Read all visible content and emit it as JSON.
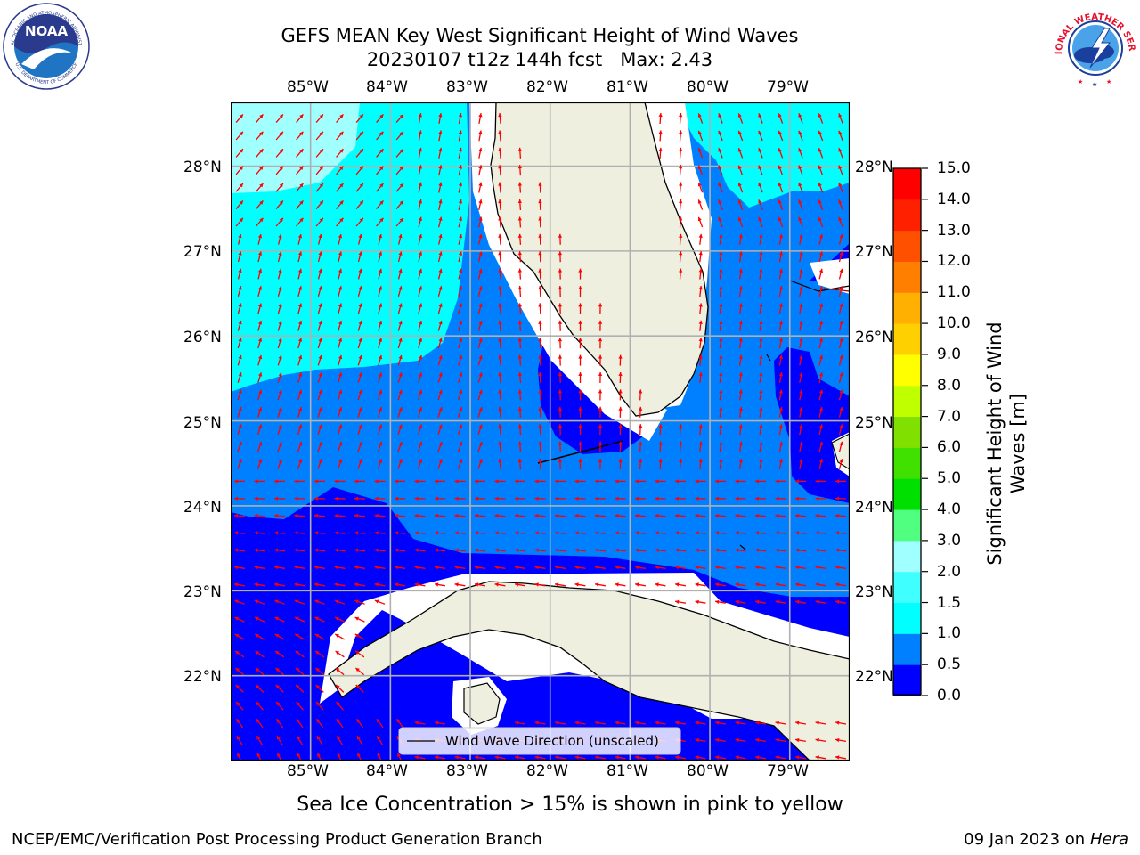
{
  "title": {
    "line1": "GEFS MEAN Key West Significant Height of Wind Waves",
    "line2": "20230107 t12z 144h fcst   Max: 2.43"
  },
  "logos": {
    "noaa_text": "NOAA",
    "noaa_ring_text": "NATIONAL OCEANIC AND ATMOSPHERIC ADMINISTRATION",
    "noaa_ring_text_bottom": "U.S. DEPARTMENT OF COMMERCE",
    "nws_ring_text": "NATIONAL WEATHER SERVICE"
  },
  "map": {
    "lon_labels": [
      "85°W",
      "84°W",
      "83°W",
      "82°W",
      "81°W",
      "80°W",
      "79°W"
    ],
    "lat_labels": [
      "28°N",
      "27°N",
      "26°N",
      "25°N",
      "24°N",
      "23°N",
      "22°N"
    ],
    "lon_range": [
      -86.0,
      -78.25
    ],
    "lat_range": [
      21.0,
      28.75
    ],
    "grid": true,
    "land_color": "#efefdf",
    "arrow_color": "#ff0000",
    "legend": {
      "entry": "Wind Wave Direction (unscaled)",
      "placement": "bottom-center"
    }
  },
  "colorbar": {
    "label": "Significant Height of Wind Waves [m]",
    "label_line1": "Significant Height of Wind",
    "label_line2": "Waves [m]",
    "ticks": [
      "0.0",
      "0.5",
      "1.0",
      "1.5",
      "2.0",
      "3.0",
      "4.0",
      "5.0",
      "6.0",
      "7.0",
      "8.0",
      "9.0",
      "10.0",
      "11.0",
      "12.0",
      "13.0",
      "14.0",
      "15.0"
    ],
    "colors": [
      "#0000ff",
      "#0080ff",
      "#00ffff",
      "#40ffff",
      "#a0ffff",
      "#50ff80",
      "#00e000",
      "#40e000",
      "#80e000",
      "#c0ff00",
      "#ffff00",
      "#ffd000",
      "#ffb000",
      "#ff8000",
      "#ff5000",
      "#ff2000",
      "#ff0000"
    ]
  },
  "ice_note": "Sea Ice Concentration > 15% is shown in pink to yellow",
  "footer": {
    "left": "NCEP/EMC/Verification Post Processing Product Generation Branch",
    "right_date": "09 Jan 2023 on ",
    "right_machine": "Hera"
  }
}
